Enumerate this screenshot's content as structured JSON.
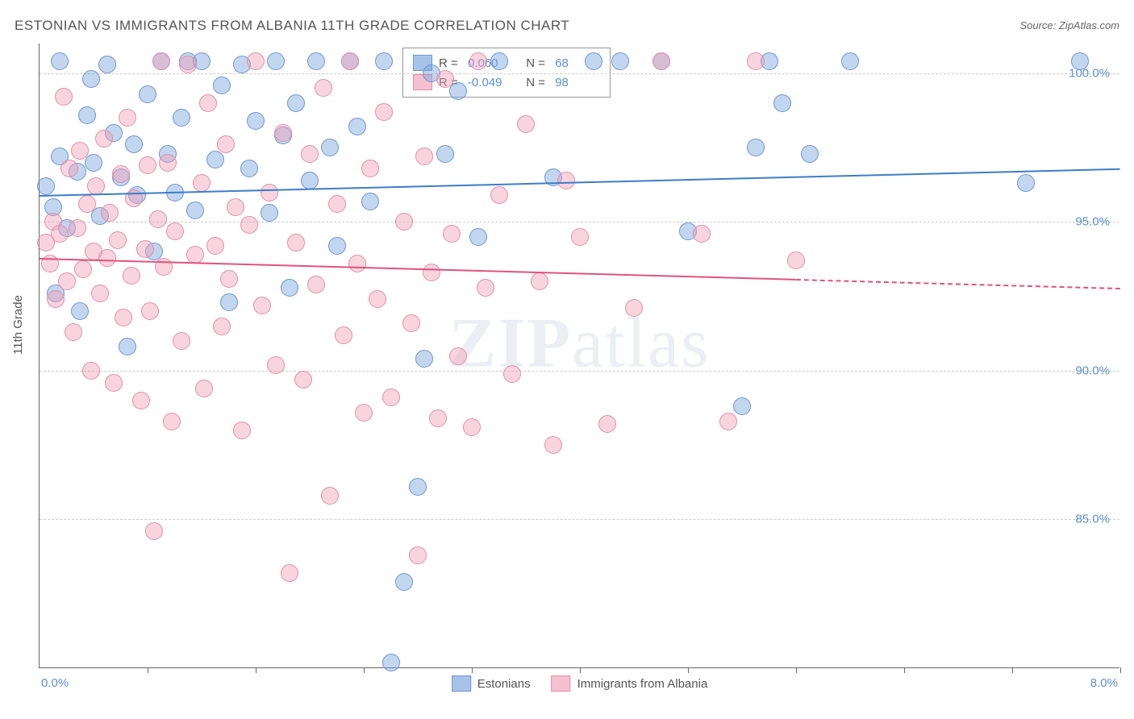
{
  "title": "ESTONIAN VS IMMIGRANTS FROM ALBANIA 11TH GRADE CORRELATION CHART",
  "source": "Source: ZipAtlas.com",
  "y_axis_label": "11th Grade",
  "watermark": "ZIPatlas",
  "chart": {
    "type": "scatter",
    "xlim": [
      0.0,
      8.0
    ],
    "ylim": [
      80.0,
      101.0
    ],
    "x_start_label": "0.0%",
    "x_end_label": "8.0%",
    "y_ticks": [
      85.0,
      90.0,
      95.0,
      100.0
    ],
    "y_tick_labels": [
      "85.0%",
      "90.0%",
      "95.0%",
      "100.0%"
    ],
    "x_ticks_minor": [
      0.8,
      1.6,
      2.4,
      3.2,
      4.0,
      4.8,
      5.6,
      6.4,
      7.2,
      8.0
    ],
    "background_color": "#ffffff",
    "grid_color": "#cccccc",
    "axis_color": "#666666",
    "series": [
      {
        "name": "Estonians",
        "color_fill": "rgba(123,163,219,0.45)",
        "color_stroke": "#6d96cf",
        "swatch_fill": "#a8c3e8",
        "swatch_stroke": "#6d96cf",
        "trend_color": "#3d7cc9",
        "marker_radius": 11,
        "R": "0.060",
        "N": "68",
        "trend": {
          "x1": 0.0,
          "y1": 95.9,
          "x2": 8.0,
          "y2": 96.8,
          "dashed_after_x": 8.0
        },
        "points": [
          [
            0.05,
            96.2
          ],
          [
            0.1,
            95.5
          ],
          [
            0.12,
            92.6
          ],
          [
            0.15,
            97.2
          ],
          [
            0.2,
            94.8
          ],
          [
            0.15,
            100.4
          ],
          [
            0.28,
            96.7
          ],
          [
            0.3,
            92.0
          ],
          [
            0.35,
            98.6
          ],
          [
            0.38,
            99.8
          ],
          [
            0.4,
            97.0
          ],
          [
            0.45,
            95.2
          ],
          [
            0.5,
            100.3
          ],
          [
            0.55,
            98.0
          ],
          [
            0.6,
            96.5
          ],
          [
            0.65,
            90.8
          ],
          [
            0.7,
            97.6
          ],
          [
            0.72,
            95.9
          ],
          [
            0.8,
            99.3
          ],
          [
            0.85,
            94.0
          ],
          [
            0.9,
            100.4
          ],
          [
            0.95,
            97.3
          ],
          [
            1.0,
            96.0
          ],
          [
            1.05,
            98.5
          ],
          [
            1.1,
            100.4
          ],
          [
            1.15,
            95.4
          ],
          [
            1.2,
            100.4
          ],
          [
            1.3,
            97.1
          ],
          [
            1.35,
            99.6
          ],
          [
            1.4,
            92.3
          ],
          [
            1.5,
            100.3
          ],
          [
            1.55,
            96.8
          ],
          [
            1.6,
            98.4
          ],
          [
            1.7,
            95.3
          ],
          [
            1.75,
            100.4
          ],
          [
            1.8,
            97.9
          ],
          [
            1.85,
            92.8
          ],
          [
            1.9,
            99.0
          ],
          [
            2.0,
            96.4
          ],
          [
            2.05,
            100.4
          ],
          [
            2.15,
            97.5
          ],
          [
            2.2,
            94.2
          ],
          [
            2.3,
            100.4
          ],
          [
            2.35,
            98.2
          ],
          [
            2.45,
            95.7
          ],
          [
            2.55,
            100.4
          ],
          [
            2.6,
            80.2
          ],
          [
            2.7,
            82.9
          ],
          [
            2.8,
            86.1
          ],
          [
            2.85,
            90.4
          ],
          [
            2.9,
            100.0
          ],
          [
            3.0,
            97.3
          ],
          [
            3.1,
            99.4
          ],
          [
            3.25,
            94.5
          ],
          [
            3.4,
            100.4
          ],
          [
            3.8,
            96.5
          ],
          [
            4.1,
            100.4
          ],
          [
            4.3,
            100.4
          ],
          [
            4.6,
            100.4
          ],
          [
            4.8,
            94.7
          ],
          [
            5.2,
            88.8
          ],
          [
            5.3,
            97.5
          ],
          [
            5.4,
            100.4
          ],
          [
            5.5,
            99.0
          ],
          [
            5.7,
            97.3
          ],
          [
            6.0,
            100.4
          ],
          [
            7.3,
            96.3
          ],
          [
            7.7,
            100.4
          ]
        ]
      },
      {
        "name": "Immigrants from Albania",
        "color_fill": "rgba(240,160,185,0.45)",
        "color_stroke": "#e28fa9",
        "swatch_fill": "#f5c0d0",
        "swatch_stroke": "#e28fa9",
        "trend_color": "#e0527c",
        "marker_radius": 11,
        "R": "-0.049",
        "N": "98",
        "trend": {
          "x1": 0.0,
          "y1": 93.8,
          "x2": 5.6,
          "y2": 93.1,
          "dashed_after_x": 5.6,
          "x2_end": 8.0,
          "y2_end": 92.8
        },
        "points": [
          [
            0.05,
            94.3
          ],
          [
            0.08,
            93.6
          ],
          [
            0.1,
            95.0
          ],
          [
            0.12,
            92.4
          ],
          [
            0.15,
            94.6
          ],
          [
            0.18,
            99.2
          ],
          [
            0.2,
            93.0
          ],
          [
            0.22,
            96.8
          ],
          [
            0.25,
            91.3
          ],
          [
            0.28,
            94.8
          ],
          [
            0.3,
            97.4
          ],
          [
            0.32,
            93.4
          ],
          [
            0.35,
            95.6
          ],
          [
            0.38,
            90.0
          ],
          [
            0.4,
            94.0
          ],
          [
            0.42,
            96.2
          ],
          [
            0.45,
            92.6
          ],
          [
            0.48,
            97.8
          ],
          [
            0.5,
            93.8
          ],
          [
            0.52,
            95.3
          ],
          [
            0.55,
            89.6
          ],
          [
            0.58,
            94.4
          ],
          [
            0.6,
            96.6
          ],
          [
            0.62,
            91.8
          ],
          [
            0.65,
            98.5
          ],
          [
            0.68,
            93.2
          ],
          [
            0.7,
            95.8
          ],
          [
            0.75,
            89.0
          ],
          [
            0.78,
            94.1
          ],
          [
            0.8,
            96.9
          ],
          [
            0.82,
            92.0
          ],
          [
            0.85,
            84.6
          ],
          [
            0.88,
            95.1
          ],
          [
            0.9,
            100.4
          ],
          [
            0.92,
            93.5
          ],
          [
            0.95,
            97.0
          ],
          [
            0.98,
            88.3
          ],
          [
            1.0,
            94.7
          ],
          [
            1.05,
            91.0
          ],
          [
            1.1,
            100.3
          ],
          [
            1.15,
            93.9
          ],
          [
            1.2,
            96.3
          ],
          [
            1.22,
            89.4
          ],
          [
            1.25,
            99.0
          ],
          [
            1.3,
            94.2
          ],
          [
            1.35,
            91.5
          ],
          [
            1.38,
            97.6
          ],
          [
            1.4,
            93.1
          ],
          [
            1.45,
            95.5
          ],
          [
            1.5,
            88.0
          ],
          [
            1.55,
            94.9
          ],
          [
            1.6,
            100.4
          ],
          [
            1.65,
            92.2
          ],
          [
            1.7,
            96.0
          ],
          [
            1.75,
            90.2
          ],
          [
            1.8,
            98.0
          ],
          [
            1.85,
            83.2
          ],
          [
            1.9,
            94.3
          ],
          [
            1.95,
            89.7
          ],
          [
            2.0,
            97.3
          ],
          [
            2.05,
            92.9
          ],
          [
            2.1,
            99.5
          ],
          [
            2.15,
            85.8
          ],
          [
            2.2,
            95.6
          ],
          [
            2.25,
            91.2
          ],
          [
            2.3,
            100.4
          ],
          [
            2.35,
            93.6
          ],
          [
            2.4,
            88.6
          ],
          [
            2.45,
            96.8
          ],
          [
            2.5,
            92.4
          ],
          [
            2.55,
            98.7
          ],
          [
            2.6,
            89.1
          ],
          [
            2.7,
            95.0
          ],
          [
            2.75,
            91.6
          ],
          [
            2.8,
            83.8
          ],
          [
            2.85,
            97.2
          ],
          [
            2.9,
            93.3
          ],
          [
            2.95,
            88.4
          ],
          [
            3.0,
            99.8
          ],
          [
            3.05,
            94.6
          ],
          [
            3.1,
            90.5
          ],
          [
            3.2,
            88.1
          ],
          [
            3.25,
            100.4
          ],
          [
            3.3,
            92.8
          ],
          [
            3.4,
            95.9
          ],
          [
            3.5,
            89.9
          ],
          [
            3.6,
            98.3
          ],
          [
            3.7,
            93.0
          ],
          [
            3.8,
            87.5
          ],
          [
            3.9,
            96.4
          ],
          [
            4.0,
            94.5
          ],
          [
            4.2,
            88.2
          ],
          [
            4.4,
            92.1
          ],
          [
            4.6,
            100.4
          ],
          [
            4.9,
            94.6
          ],
          [
            5.1,
            88.3
          ],
          [
            5.3,
            100.4
          ],
          [
            5.6,
            93.7
          ]
        ]
      }
    ]
  },
  "bottom_legend": {
    "series1": "Estonians",
    "series2": "Immigrants from Albania"
  }
}
